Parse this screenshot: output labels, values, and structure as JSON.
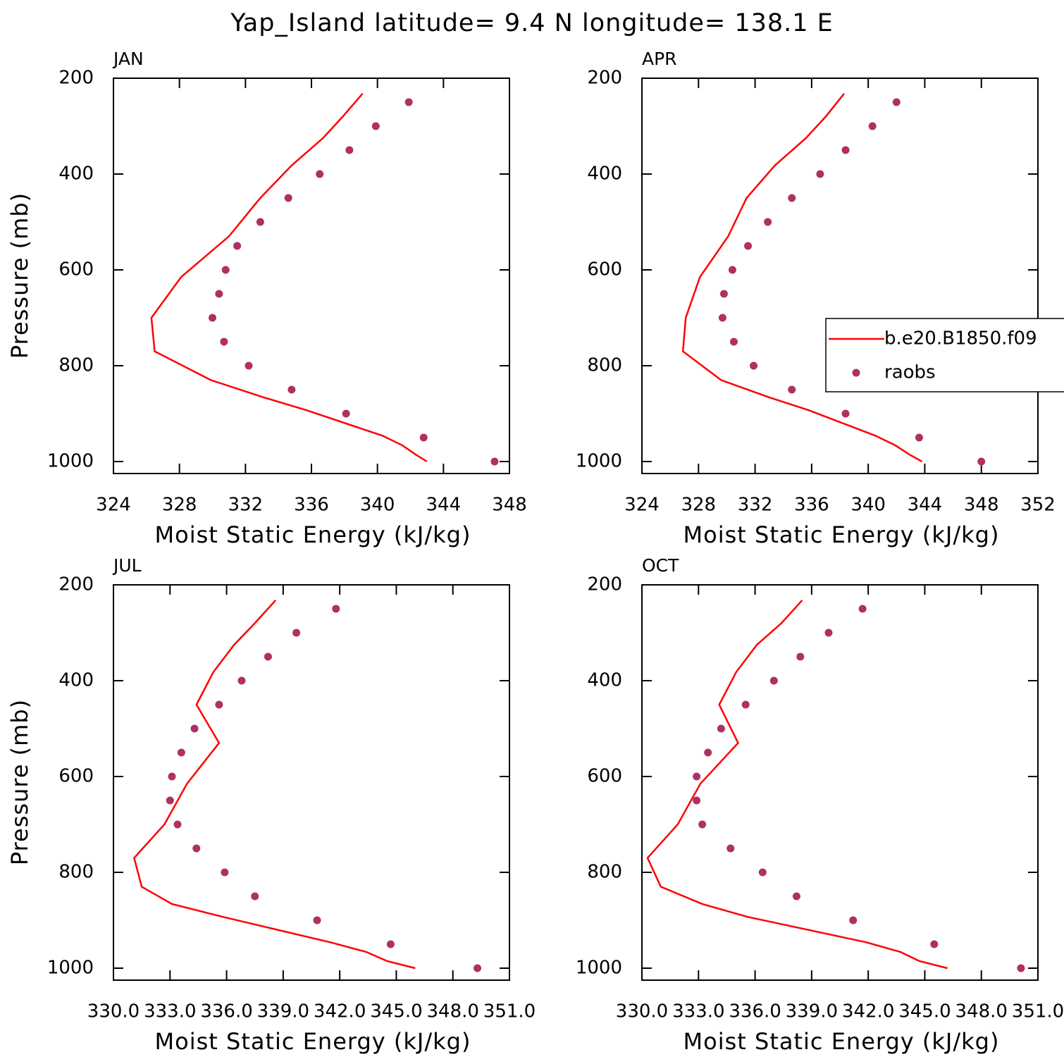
{
  "title": "Yap_Island  latitude= 9.4 N longitude= 138.1 E",
  "chart_data": [
    {
      "type": "profile",
      "title": "JAN",
      "xlabel": "Moist Static Energy (kJ/kg)",
      "ylabel": "Pressure (mb)",
      "xlim": [
        324,
        348
      ],
      "xticks": [
        324,
        328,
        332,
        336,
        340,
        344,
        348
      ],
      "ylim": [
        200,
        1025
      ],
      "yreverse": true,
      "yticks": [
        200,
        400,
        600,
        800,
        1000
      ],
      "series": [
        {
          "style": "line",
          "color": "#ff0000",
          "x": [
            339.1,
            337.9,
            336.7,
            334.8,
            332.9,
            331.0,
            328.1,
            326.3,
            326.5,
            329.9,
            333.1,
            335.7,
            340.3,
            341.5,
            342.3,
            343.0
          ],
          "y": [
            232,
            280,
            325,
            382,
            450,
            530,
            615,
            700,
            770,
            830,
            866,
            893,
            946,
            966,
            985,
            1000
          ]
        },
        {
          "style": "dots",
          "color": "#b03060",
          "x": [
            341.9,
            339.9,
            338.3,
            336.5,
            334.6,
            332.9,
            331.5,
            330.8,
            330.4,
            330.0,
            330.7,
            332.2,
            334.8,
            338.1,
            342.8,
            347.1
          ],
          "y": [
            250,
            300,
            350,
            400,
            450,
            500,
            550,
            600,
            650,
            700,
            750,
            800,
            850,
            900,
            950,
            1000
          ]
        }
      ]
    },
    {
      "type": "profile",
      "title": "APR",
      "xlabel": "Moist Static Energy (kJ/kg)",
      "legend": "right",
      "xlim": [
        324,
        352
      ],
      "xticks": [
        324,
        328,
        332,
        336,
        340,
        344,
        348,
        352
      ],
      "ylim": [
        200,
        1025
      ],
      "yreverse": true,
      "yticks": [
        200,
        400,
        600,
        800,
        1000
      ],
      "series": [
        {
          "name": "b.e20.B1850.f09",
          "style": "line",
          "color": "#ff0000",
          "x": [
            338.3,
            337.0,
            335.6,
            333.4,
            331.4,
            330.1,
            328.1,
            327.1,
            326.9,
            329.6,
            333.0,
            335.8,
            340.5,
            341.9,
            342.9,
            343.8
          ],
          "y": [
            232,
            280,
            325,
            382,
            450,
            530,
            615,
            700,
            770,
            830,
            866,
            893,
            946,
            966,
            985,
            1000
          ]
        },
        {
          "name": "raobs",
          "style": "dots",
          "color": "#b03060",
          "x": [
            342.0,
            340.3,
            338.4,
            336.6,
            334.6,
            332.9,
            331.5,
            330.4,
            329.8,
            329.7,
            330.5,
            331.9,
            334.6,
            338.4,
            343.6,
            348.0
          ],
          "y": [
            250,
            300,
            350,
            400,
            450,
            500,
            550,
            600,
            650,
            700,
            750,
            800,
            850,
            900,
            950,
            1000
          ]
        }
      ]
    },
    {
      "type": "profile",
      "title": "JUL",
      "xlabel": "Moist Static Energy (kJ/kg)",
      "ylabel": "Pressure (mb)",
      "xlim": [
        330,
        351
      ],
      "xticks": [
        {
          "value": 330,
          "label": "330.0"
        },
        {
          "value": 333,
          "label": "333.0"
        },
        {
          "value": 336,
          "label": "336.0"
        },
        {
          "value": 339,
          "label": "339.0"
        },
        {
          "value": 342,
          "label": "342.0"
        },
        {
          "value": 345,
          "label": "345.0"
        },
        {
          "value": 348,
          "label": "348.0"
        },
        {
          "value": 351,
          "label": "351.0"
        }
      ],
      "ylim": [
        200,
        1025
      ],
      "yreverse": true,
      "yticks": [
        200,
        400,
        600,
        800,
        1000
      ],
      "series": [
        {
          "style": "line",
          "color": "#ff0000",
          "x": [
            338.6,
            337.5,
            336.4,
            335.3,
            334.4,
            335.6,
            333.9,
            332.7,
            331.1,
            331.5,
            333.1,
            335.8,
            341.5,
            343.4,
            344.5,
            346.0
          ],
          "y": [
            232,
            280,
            325,
            382,
            450,
            530,
            615,
            700,
            770,
            830,
            866,
            893,
            946,
            966,
            985,
            1000
          ]
        },
        {
          "style": "dots",
          "color": "#b03060",
          "x": [
            341.8,
            339.7,
            338.2,
            336.8,
            335.6,
            334.3,
            333.6,
            333.1,
            333.0,
            333.4,
            334.4,
            335.9,
            337.5,
            340.8,
            344.7,
            349.3
          ],
          "y": [
            250,
            300,
            350,
            400,
            450,
            500,
            550,
            600,
            650,
            700,
            750,
            800,
            850,
            900,
            950,
            1000
          ]
        }
      ]
    },
    {
      "type": "profile",
      "title": "OCT",
      "xlabel": "Moist Static Energy (kJ/kg)",
      "xlim": [
        330,
        351
      ],
      "xticks": [
        {
          "value": 330,
          "label": "330.0"
        },
        {
          "value": 333,
          "label": "333.0"
        },
        {
          "value": 336,
          "label": "336.0"
        },
        {
          "value": 339,
          "label": "339.0"
        },
        {
          "value": 342,
          "label": "342.0"
        },
        {
          "value": 345,
          "label": "345.0"
        },
        {
          "value": 348,
          "label": "348.0"
        },
        {
          "value": 351,
          "label": "351.0"
        }
      ],
      "ylim": [
        200,
        1025
      ],
      "yreverse": true,
      "yticks": [
        200,
        400,
        600,
        800,
        1000
      ],
      "series": [
        {
          "style": "line",
          "color": "#ff0000",
          "x": [
            338.5,
            337.4,
            336.1,
            335.0,
            334.1,
            335.1,
            333.1,
            331.9,
            330.3,
            331.0,
            333.2,
            335.6,
            341.9,
            343.7,
            344.7,
            346.2
          ],
          "y": [
            232,
            280,
            325,
            382,
            450,
            530,
            615,
            700,
            770,
            830,
            866,
            893,
            946,
            966,
            985,
            1000
          ]
        },
        {
          "style": "dots",
          "color": "#b03060",
          "x": [
            341.7,
            339.9,
            338.4,
            337.0,
            335.5,
            334.2,
            333.5,
            332.9,
            332.9,
            333.2,
            334.7,
            336.4,
            338.2,
            341.2,
            345.5,
            350.1
          ],
          "y": [
            250,
            300,
            350,
            400,
            450,
            500,
            550,
            600,
            650,
            700,
            750,
            800,
            850,
            900,
            950,
            1000
          ]
        }
      ]
    }
  ]
}
